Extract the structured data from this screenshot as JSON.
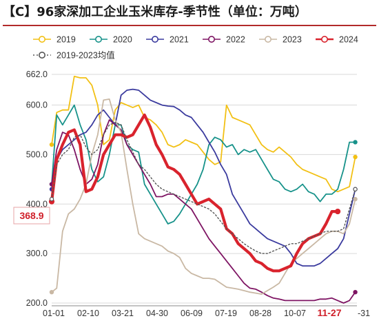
{
  "chart_data": {
    "type": "line",
    "title": "【C】96家深加工企业玉米库存-季节性（单位：万吨）",
    "xlabel": "",
    "ylabel": "",
    "x_ticks": [
      "01-01",
      "02-10",
      "03-21",
      "04-30",
      "06-09",
      "07-19",
      "08-28",
      "10-07",
      "11-27",
      "-31"
    ],
    "highlight_tick": "11-27",
    "y_ticks": [
      200.0,
      300.0,
      400.0,
      500.0,
      600.0,
      662.0
    ],
    "y_tick_labels": [
      "200.0",
      "300.0",
      "400.0",
      "500.0",
      "600.0",
      "662.0"
    ],
    "ylim": [
      200,
      662
    ],
    "grid": "horizontal",
    "legend_position": "top",
    "current_value_label": "368.9",
    "series": [
      {
        "name": "2019",
        "color": "#f2c014",
        "dash": false,
        "width": 1.8,
        "marker": "circle",
        "x": [
          1,
          7,
          14,
          21,
          28,
          35,
          42,
          49,
          56,
          63,
          70,
          77,
          84,
          91,
          98,
          105,
          112,
          119,
          126,
          133,
          140,
          147,
          154,
          161,
          168,
          175,
          182,
          189,
          196,
          203,
          210,
          217,
          224,
          231,
          238,
          245,
          252,
          259,
          266,
          273,
          280,
          287,
          294,
          301,
          308,
          315,
          322,
          329,
          336,
          343,
          350,
          357,
          364
        ],
        "y": [
          520,
          585,
          590,
          590,
          658,
          655,
          655,
          640,
          600,
          520,
          530,
          590,
          605,
          600,
          595,
          600,
          575,
          570,
          560,
          545,
          520,
          515,
          520,
          530,
          525,
          520,
          505,
          490,
          480,
          485,
          600,
          575,
          570,
          565,
          560,
          540,
          520,
          510,
          505,
          515,
          505,
          495,
          480,
          470,
          465,
          460,
          455,
          450,
          430,
          425,
          430,
          435,
          495
        ]
      },
      {
        "name": "2020",
        "color": "#17928a",
        "dash": false,
        "width": 1.8,
        "marker": "circle",
        "x": [
          1,
          7,
          14,
          21,
          28,
          35,
          42,
          49,
          56,
          63,
          70,
          77,
          84,
          91,
          98,
          105,
          112,
          119,
          126,
          133,
          140,
          147,
          154,
          161,
          168,
          175,
          182,
          189,
          196,
          203,
          210,
          217,
          224,
          231,
          238,
          245,
          252,
          259,
          266,
          273,
          280,
          287,
          294,
          301,
          308,
          315,
          322,
          329,
          336,
          343,
          350,
          357,
          364
        ],
        "y": [
          440,
          580,
          560,
          580,
          600,
          560,
          530,
          470,
          445,
          455,
          500,
          560,
          560,
          520,
          510,
          505,
          440,
          420,
          400,
          380,
          360,
          365,
          380,
          400,
          420,
          440,
          470,
          520,
          535,
          530,
          515,
          520,
          500,
          510,
          505,
          510,
          490,
          470,
          450,
          445,
          430,
          425,
          430,
          440,
          425,
          420,
          405,
          420,
          420,
          430,
          470,
          525,
          525
        ]
      },
      {
        "name": "2021",
        "color": "#3a3a9e",
        "dash": false,
        "width": 1.8,
        "marker": "circle",
        "x": [
          1,
          7,
          14,
          21,
          28,
          35,
          42,
          49,
          56,
          63,
          70,
          77,
          84,
          91,
          98,
          105,
          112,
          119,
          126,
          133,
          140,
          147,
          154,
          161,
          168,
          175,
          182,
          189,
          196,
          203,
          210,
          217,
          224,
          231,
          238,
          245,
          252,
          259,
          266,
          273,
          280,
          287,
          294,
          301,
          308,
          315,
          322,
          329,
          336,
          343,
          350,
          357,
          364
        ],
        "y": [
          430,
          490,
          510,
          520,
          530,
          540,
          545,
          560,
          580,
          590,
          575,
          560,
          620,
          630,
          632,
          630,
          620,
          610,
          605,
          600,
          598,
          597,
          590,
          580,
          575,
          560,
          545,
          525,
          505,
          480,
          460,
          420,
          400,
          380,
          360,
          350,
          340,
          330,
          325,
          320,
          315,
          300,
          280,
          275,
          275,
          275,
          280,
          290,
          300,
          310,
          330,
          380,
          430
        ]
      },
      {
        "name": "2022",
        "color": "#7e1463",
        "dash": false,
        "width": 1.8,
        "marker": "circle",
        "x": [
          1,
          7,
          14,
          21,
          28,
          35,
          42,
          49,
          56,
          63,
          70,
          77,
          84,
          91,
          98,
          105,
          112,
          119,
          126,
          133,
          140,
          147,
          154,
          161,
          168,
          175,
          182,
          189,
          196,
          203,
          210,
          217,
          224,
          231,
          238,
          245,
          252,
          259,
          266,
          273,
          280,
          287,
          294,
          301,
          308,
          315,
          322,
          329,
          336,
          343,
          350,
          357,
          364
        ],
        "y": [
          440,
          510,
          545,
          540,
          510,
          470,
          440,
          450,
          480,
          540,
          570,
          560,
          550,
          520,
          500,
          480,
          460,
          440,
          415,
          415,
          420,
          420,
          410,
          400,
          390,
          370,
          350,
          330,
          315,
          300,
          285,
          270,
          255,
          240,
          230,
          228,
          222,
          215,
          210,
          208,
          205,
          205,
          205,
          205,
          205,
          205,
          208,
          208,
          210,
          205,
          200,
          205,
          222
        ]
      },
      {
        "name": "2023",
        "color": "#c9b8a4",
        "dash": false,
        "width": 1.8,
        "marker": "circle",
        "x": [
          1,
          7,
          14,
          21,
          28,
          35,
          42,
          49,
          56,
          63,
          70,
          77,
          84,
          91,
          98,
          105,
          112,
          119,
          126,
          133,
          140,
          147,
          154,
          161,
          168,
          175,
          182,
          189,
          196,
          203,
          210,
          217,
          224,
          231,
          238,
          245,
          252,
          259,
          266,
          273,
          280,
          287,
          294,
          301,
          308,
          315,
          322,
          329,
          336,
          343,
          350,
          357,
          364
        ],
        "y": [
          222,
          230,
          345,
          380,
          390,
          410,
          440,
          500,
          540,
          610,
          612,
          570,
          545,
          470,
          400,
          340,
          330,
          325,
          320,
          315,
          305,
          300,
          292,
          270,
          260,
          255,
          250,
          250,
          248,
          240,
          232,
          230,
          228,
          225,
          222,
          220,
          218,
          225,
          232,
          240,
          260,
          280,
          290,
          300,
          310,
          320,
          330,
          340,
          345,
          345,
          340,
          360,
          410
        ]
      },
      {
        "name": "2024",
        "color": "#d9232d",
        "dash": false,
        "width": 4.2,
        "marker": "circle",
        "x": [
          1,
          7,
          14,
          21,
          28,
          35,
          42,
          49,
          56,
          63,
          70,
          77,
          84,
          91,
          98,
          105,
          112,
          119,
          126,
          133,
          140,
          147,
          154,
          161,
          168,
          175,
          182,
          189,
          196,
          203,
          210,
          217,
          224,
          231,
          238,
          245,
          252,
          259,
          266,
          273,
          280,
          287,
          294,
          301,
          308,
          315,
          322,
          329,
          336,
          343
        ],
        "y": [
          405,
          490,
          520,
          545,
          550,
          520,
          425,
          430,
          455,
          500,
          520,
          540,
          540,
          535,
          540,
          560,
          580,
          555,
          520,
          500,
          475,
          470,
          460,
          440,
          420,
          400,
          405,
          410,
          400,
          390,
          350,
          340,
          320,
          310,
          300,
          285,
          280,
          270,
          265,
          265,
          270,
          275,
          300,
          320,
          330,
          335,
          340,
          360,
          385,
          385
        ]
      },
      {
        "name": "2019-2023均值",
        "color": "#555555",
        "dash": true,
        "width": 1.4,
        "marker": "circle-open",
        "x": [
          1,
          7,
          14,
          21,
          28,
          35,
          42,
          49,
          56,
          63,
          70,
          77,
          84,
          91,
          98,
          105,
          112,
          119,
          126,
          133,
          140,
          147,
          154,
          161,
          168,
          175,
          182,
          189,
          196,
          203,
          210,
          217,
          224,
          231,
          238,
          245,
          252,
          259,
          266,
          273,
          280,
          287,
          294,
          301,
          308,
          315,
          322,
          329,
          336,
          343,
          350,
          357,
          364
        ],
        "y": [
          410,
          480,
          500,
          510,
          535,
          540,
          515,
          500,
          510,
          540,
          560,
          565,
          560,
          530,
          505,
          480,
          470,
          455,
          440,
          430,
          425,
          420,
          415,
          410,
          405,
          400,
          395,
          390,
          380,
          365,
          350,
          340,
          330,
          320,
          312,
          305,
          300,
          300,
          305,
          310,
          315,
          320,
          320,
          325,
          330,
          335,
          340,
          345,
          345,
          345,
          350,
          390,
          430
        ]
      }
    ]
  }
}
